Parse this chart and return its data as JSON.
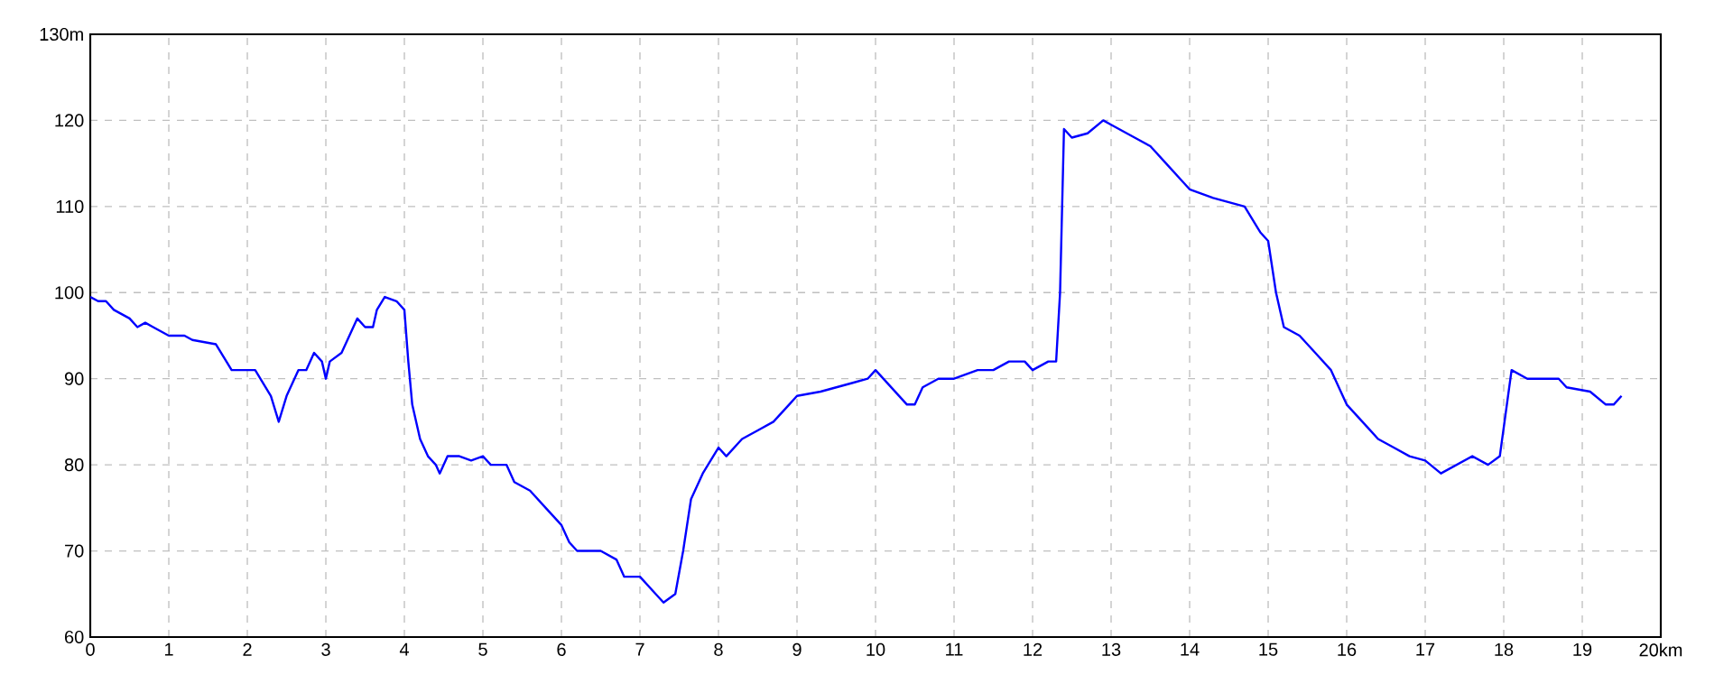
{
  "chart_data": {
    "type": "line",
    "x": [
      0,
      0.1,
      0.2,
      0.3,
      0.5,
      0.6,
      0.7,
      0.8,
      1.0,
      1.2,
      1.3,
      1.6,
      1.8,
      2.0,
      2.1,
      2.3,
      2.4,
      2.5,
      2.65,
      2.75,
      2.85,
      2.95,
      3.0,
      3.05,
      3.2,
      3.3,
      3.4,
      3.5,
      3.6,
      3.65,
      3.75,
      3.9,
      4.0,
      4.05,
      4.1,
      4.2,
      4.3,
      4.4,
      4.45,
      4.55,
      4.7,
      4.85,
      5.0,
      5.1,
      5.3,
      5.4,
      5.6,
      5.8,
      6.0,
      6.1,
      6.2,
      6.5,
      6.7,
      6.8,
      7.0,
      7.2,
      7.3,
      7.45,
      7.55,
      7.65,
      7.8,
      8.0,
      8.1,
      8.3,
      8.5,
      8.7,
      8.9,
      9.0,
      9.3,
      9.5,
      9.7,
      9.9,
      10.0,
      10.2,
      10.4,
      10.5,
      10.6,
      10.8,
      11.0,
      11.3,
      11.5,
      11.7,
      11.9,
      12.0,
      12.2,
      12.3,
      12.35,
      12.4,
      12.5,
      12.7,
      12.9,
      13.0,
      13.3,
      13.5,
      13.7,
      13.9,
      14.0,
      14.3,
      14.5,
      14.7,
      14.9,
      15.0,
      15.1,
      15.2,
      15.4,
      15.6,
      15.8,
      16.0,
      16.2,
      16.4,
      16.6,
      16.8,
      17.0,
      17.2,
      17.4,
      17.6,
      17.8,
      17.95,
      18.1,
      18.3,
      18.7,
      18.8,
      19.1,
      19.3,
      19.4,
      19.5
    ],
    "series": [
      {
        "color": "#0000ff",
        "values": [
          99.5,
          99,
          99,
          98,
          97,
          96,
          96.5,
          96,
          95,
          95,
          94.5,
          94,
          91,
          91,
          91,
          88,
          85,
          88,
          91,
          91,
          93,
          92,
          90,
          92,
          93,
          95,
          97,
          96,
          96,
          98,
          99.5,
          99,
          98,
          92,
          87,
          83,
          81,
          80,
          79,
          81,
          81,
          80.5,
          81,
          80,
          80,
          78,
          77,
          75,
          73,
          71,
          70,
          70,
          69,
          67,
          67,
          65,
          64,
          65,
          70,
          76,
          79,
          82,
          81,
          83,
          84,
          85,
          87,
          88,
          88.5,
          89,
          89.5,
          90,
          91,
          89,
          87,
          87,
          89,
          90,
          90,
          91,
          91,
          92,
          92,
          91,
          92,
          92,
          100,
          119,
          118,
          118.5,
          120,
          119.5,
          118,
          117,
          115,
          113,
          112,
          111,
          110.5,
          110,
          107,
          106,
          100,
          96,
          95,
          93,
          91,
          87,
          85,
          83,
          82,
          81,
          80.5,
          79,
          80,
          81,
          80,
          81,
          91,
          90,
          90,
          89,
          88.5,
          87,
          87,
          88
        ]
      }
    ],
    "xlim": [
      0,
      20
    ],
    "ylim": [
      60,
      130
    ],
    "xticks": [
      0,
      1,
      2,
      3,
      4,
      5,
      6,
      7,
      8,
      9,
      10,
      11,
      12,
      13,
      14,
      15,
      16,
      17,
      18,
      19,
      {
        "value": 20,
        "label": "20km"
      }
    ],
    "yticks": [
      60,
      70,
      80,
      90,
      100,
      110,
      120,
      {
        "value": 130,
        "label": "130m"
      }
    ],
    "grid": true
  }
}
